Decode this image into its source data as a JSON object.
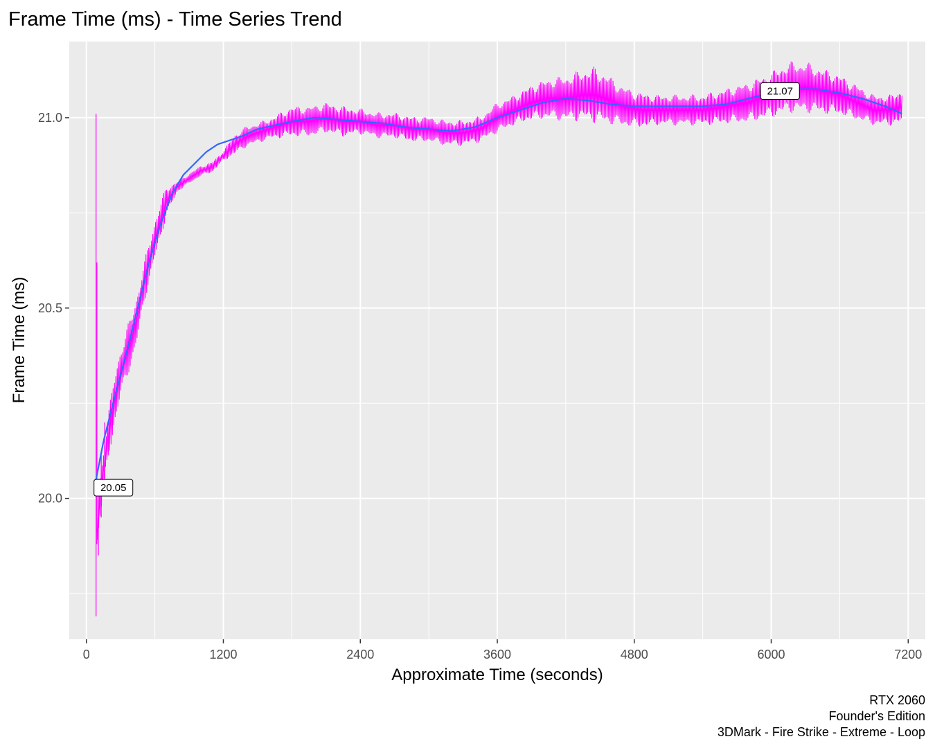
{
  "chart_data": {
    "type": "line",
    "title": "Frame Time (ms) - Time Series Trend",
    "xlabel": "Approximate Time (seconds)",
    "ylabel": "Frame Time (ms)",
    "xlim": [
      -150,
      7350
    ],
    "ylim": [
      19.63,
      21.2
    ],
    "x_ticks": [
      0,
      1200,
      2400,
      3600,
      4800,
      6000,
      7200
    ],
    "x_tick_labels": [
      "0",
      "1200",
      "2400",
      "3600",
      "4800",
      "6000",
      "7200"
    ],
    "y_ticks": [
      20.0,
      20.5,
      21.0
    ],
    "y_tick_labels": [
      "20.0",
      "20.5",
      "21.0"
    ],
    "y_minor_ticks": [
      19.75,
      20.25,
      20.75
    ],
    "grid": true,
    "caption": [
      "RTX 2060",
      "Founder's Edition",
      "3DMark - Fire Strike - Extreme - Loop"
    ],
    "colors": {
      "frame_time": "#ff00ff",
      "trend": "#3366ff",
      "panel": "#ebebeb",
      "grid": "#ffffff"
    },
    "series": [
      {
        "style": "oscillating band",
        "x": [
          90,
          100,
          115,
          130,
          160,
          200,
          250,
          300,
          350,
          400,
          450,
          500,
          550,
          600,
          700,
          800,
          900,
          1000,
          1100,
          1200,
          1300,
          1400,
          1500,
          1600,
          1700,
          1800,
          1950,
          2100,
          2250,
          2400,
          2550,
          2700,
          2850,
          3000,
          3150,
          3300,
          3450,
          3600,
          3750,
          3900,
          4050,
          4200,
          4350,
          4450,
          4550,
          4700,
          4850,
          5000,
          5200,
          5400,
          5600,
          5800,
          6000,
          6150,
          6300,
          6450,
          6600,
          6750,
          6900,
          7050,
          7150
        ],
        "center": [
          19.9,
          19.92,
          19.98,
          20.02,
          20.1,
          20.18,
          20.26,
          20.33,
          20.38,
          20.42,
          20.48,
          20.56,
          20.62,
          20.68,
          20.78,
          20.82,
          20.84,
          20.86,
          20.87,
          20.9,
          20.93,
          20.95,
          20.96,
          20.97,
          20.98,
          20.99,
          20.99,
          21.0,
          20.99,
          20.99,
          20.98,
          20.98,
          20.97,
          20.97,
          20.96,
          20.96,
          20.97,
          21.0,
          21.02,
          21.04,
          21.05,
          21.05,
          21.06,
          21.06,
          21.05,
          21.03,
          21.02,
          21.02,
          21.02,
          21.02,
          21.03,
          21.04,
          21.06,
          21.08,
          21.08,
          21.07,
          21.06,
          21.04,
          21.02,
          21.02,
          21.03
        ],
        "amplitude": [
          0.02,
          0.02,
          0.03,
          0.04,
          0.05,
          0.05,
          0.05,
          0.05,
          0.05,
          0.05,
          0.05,
          0.04,
          0.04,
          0.04,
          0.03,
          0.01,
          0.01,
          0.01,
          0.01,
          0.01,
          0.02,
          0.02,
          0.02,
          0.02,
          0.025,
          0.03,
          0.03,
          0.03,
          0.03,
          0.025,
          0.025,
          0.025,
          0.025,
          0.025,
          0.025,
          0.025,
          0.025,
          0.03,
          0.03,
          0.035,
          0.04,
          0.045,
          0.05,
          0.055,
          0.05,
          0.04,
          0.035,
          0.03,
          0.03,
          0.03,
          0.035,
          0.04,
          0.045,
          0.05,
          0.05,
          0.045,
          0.04,
          0.035,
          0.03,
          0.03,
          0.035
        ],
        "initial_spikes": [
          {
            "x": 85,
            "y0": 19.69,
            "y1": 21.01
          },
          {
            "x": 92,
            "y0": 19.88,
            "y1": 20.62
          },
          {
            "x": 105,
            "y0": 19.85,
            "y1": 20.05
          },
          {
            "x": 130,
            "y0": 19.95,
            "y1": 20.12
          },
          {
            "x": 160,
            "y0": 20.02,
            "y1": 20.2
          }
        ]
      },
      {
        "style": "smooth trend line",
        "x": [
          85,
          150,
          250,
          350,
          450,
          550,
          650,
          750,
          850,
          950,
          1050,
          1150,
          1250,
          1350,
          1500,
          1650,
          1800,
          2000,
          2200,
          2400,
          2600,
          2800,
          3000,
          3200,
          3400,
          3600,
          3800,
          4000,
          4200,
          4400,
          4600,
          4800,
          5000,
          5200,
          5400,
          5600,
          5800,
          6000,
          6200,
          6400,
          6600,
          6800,
          7000,
          7150
        ],
        "y": [
          20.05,
          20.15,
          20.27,
          20.38,
          20.5,
          20.62,
          20.72,
          20.8,
          20.85,
          20.88,
          20.91,
          20.93,
          20.94,
          20.95,
          20.97,
          20.98,
          20.99,
          21.0,
          20.995,
          20.99,
          20.985,
          20.975,
          20.97,
          20.965,
          20.975,
          21.0,
          21.02,
          21.04,
          21.05,
          21.045,
          21.035,
          21.03,
          21.03,
          21.03,
          21.03,
          21.035,
          21.05,
          21.065,
          21.075,
          21.075,
          21.065,
          21.05,
          21.03,
          21.01
        ]
      }
    ],
    "annotations": [
      {
        "text": "20.05",
        "x": 85,
        "y": 20.05
      },
      {
        "text": "21.07",
        "x": 6150,
        "y": 21.07
      }
    ]
  }
}
